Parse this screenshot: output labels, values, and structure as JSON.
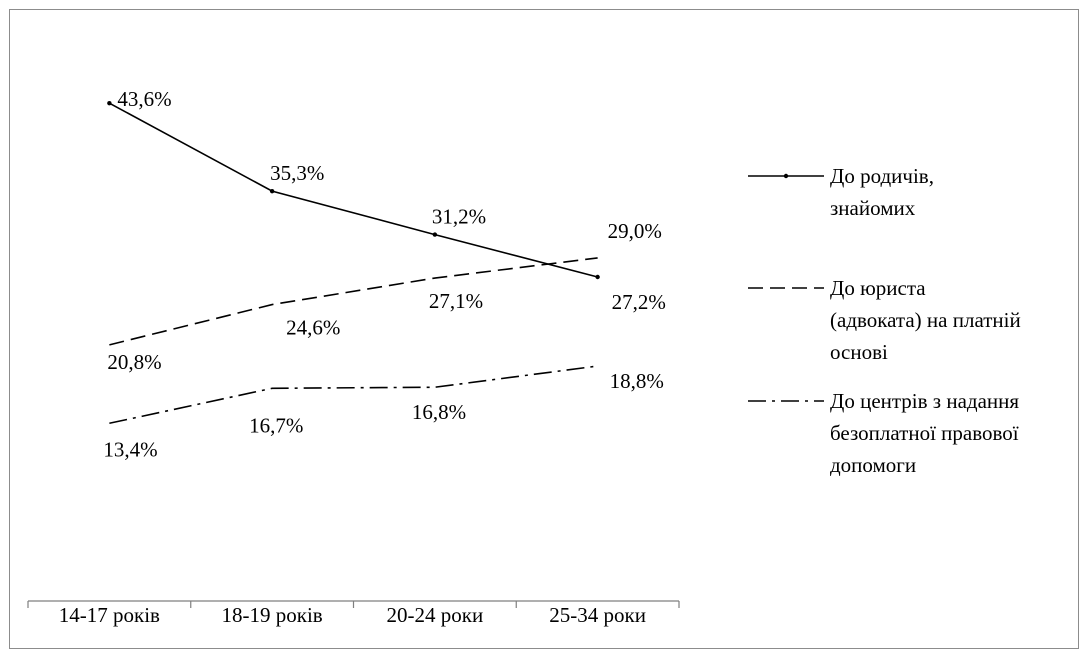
{
  "chart_data": {
    "type": "line",
    "categories": [
      "14-17 років",
      "18-19 років",
      "20-24 роки",
      "25-34 роки"
    ],
    "series": [
      {
        "name": "До родичів, знайомих",
        "legend_lines": [
          "До родичів,",
          "знайомих"
        ],
        "style": "solid-marker",
        "values": [
          43.6,
          35.3,
          31.2,
          27.2
        ],
        "labels": [
          "43,6%",
          "35,3%",
          "31,2%",
          "27,2%"
        ]
      },
      {
        "name": "До юриста (адвоката) на платній основі",
        "legend_lines": [
          "До юриста",
          "(адвоката) на платній",
          "основі"
        ],
        "style": "dashed",
        "values": [
          20.8,
          24.6,
          27.1,
          29.0
        ],
        "labels": [
          "20,8%",
          "24,6%",
          "27,1%",
          "29,0%"
        ]
      },
      {
        "name": "До центрів з надання безоплатної правової допомоги",
        "legend_lines": [
          "До центрів з надання",
          "безоплатної правової",
          "допомоги"
        ],
        "style": "dash-dot",
        "values": [
          13.4,
          16.7,
          16.8,
          18.8
        ],
        "labels": [
          "13,4%",
          "16,7%",
          "16,8%",
          "18,8%"
        ]
      }
    ],
    "title": "",
    "xlabel": "",
    "ylabel": "",
    "legend_position": "right",
    "grid": false,
    "y_axis_visible": false,
    "colors": {
      "line": "#000000",
      "axis": "#7f7f7f",
      "frame": "#8c8c8c"
    }
  }
}
